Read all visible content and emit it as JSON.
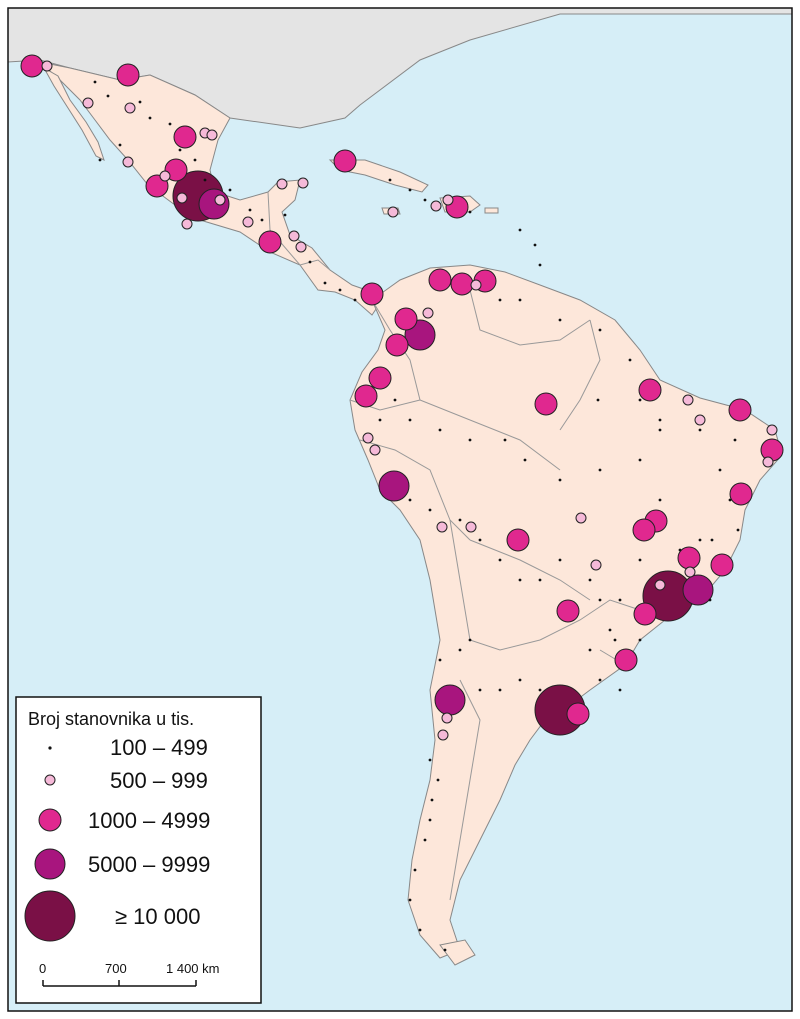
{
  "map": {
    "colors": {
      "ocean": "#d6eef7",
      "latin_america_land": "#fde7da",
      "north_america_land": "#e4e4e4",
      "border": "#999999",
      "coast": "#888888",
      "class_100_499": "#111111",
      "class_500_999": "#f5b9d8",
      "class_1000_4999": "#e0288f",
      "class_5000_9999": "#a8157e",
      "class_10000": "#7a1046"
    }
  },
  "legend": {
    "title": "Broj stanovnika u tis.",
    "classes": [
      {
        "label": "100 – 499"
      },
      {
        "label": "500 – 999"
      },
      {
        "label": "1000 – 4999"
      },
      {
        "label": "5000 – 9999"
      },
      {
        "label": "≥ 10 000"
      }
    ]
  },
  "scale_bar": {
    "ticks": [
      "0",
      "700",
      "1 400 km"
    ]
  }
}
